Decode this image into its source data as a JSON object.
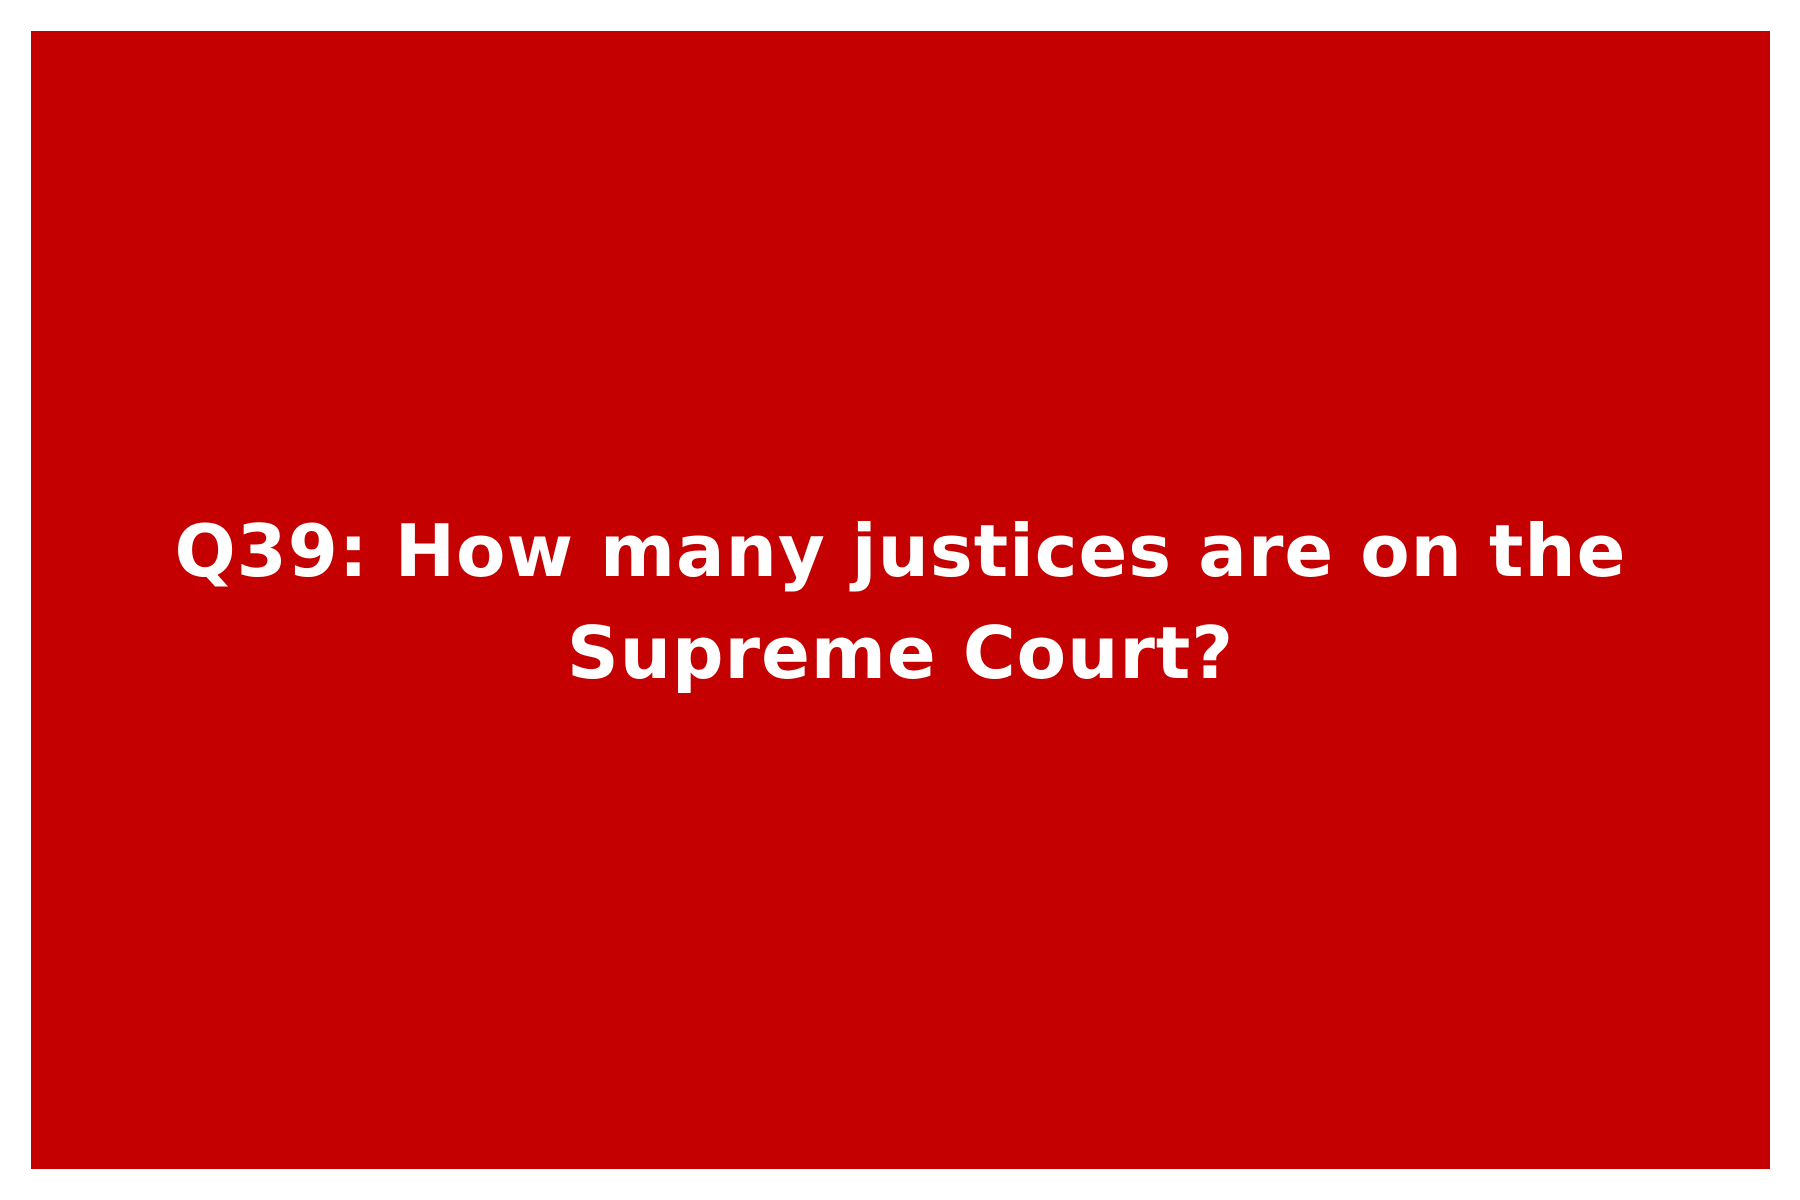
{
  "card": {
    "question": "Q39: How many justices are on the Supreme Court?",
    "background_color": "#c40000",
    "text_color": "#ffffff"
  }
}
